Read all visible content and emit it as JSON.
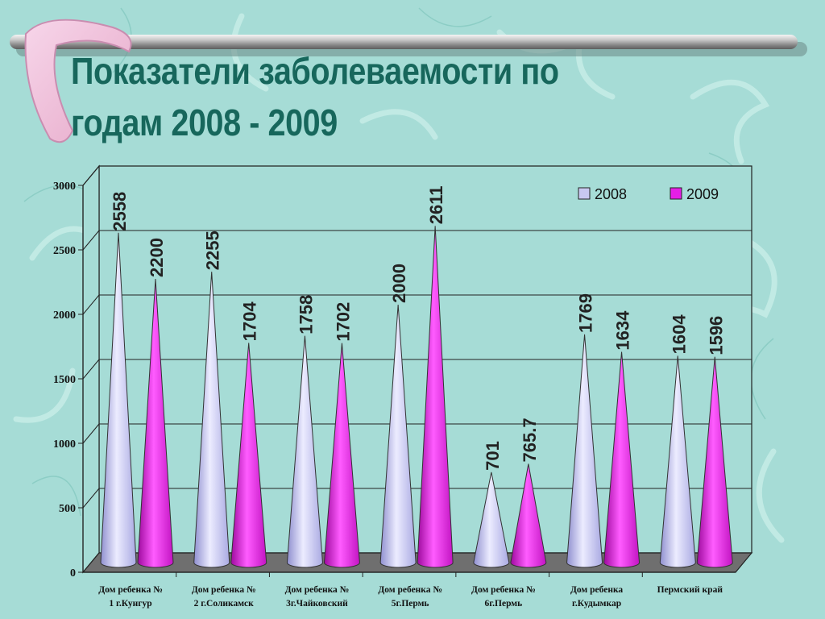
{
  "title": "Показатели заболеваемости по годам 2008 - 2009",
  "chart_data": {
    "type": "bar",
    "shape": "cone",
    "categories": [
      [
        "Дом ребенка №",
        "1 г.Кунгур"
      ],
      [
        "Дом ребенка №",
        "2 г.Соликамск"
      ],
      [
        "Дом ребенка №",
        "3г.Чайковский"
      ],
      [
        "Дом ребенка №",
        "5г.Пермь"
      ],
      [
        "Дом ребенка №",
        "6г.Пермь"
      ],
      [
        "Дом ребенка",
        "г.Кудымкар"
      ],
      [
        "Пермский край"
      ]
    ],
    "series": [
      {
        "name": "2008",
        "values": [
          2558,
          2255,
          1758,
          2000,
          701,
          1769,
          1604
        ],
        "labels": [
          "2558",
          "2255",
          "1758",
          "2000",
          "701",
          "1769",
          "1604"
        ],
        "color": "#c8c8f0"
      },
      {
        "name": "2009",
        "values": [
          2200,
          1704,
          1702,
          2611,
          765.7,
          1634,
          1596
        ],
        "labels": [
          "2200",
          "1704",
          "1702",
          "2611",
          "765.7",
          "1634",
          "1596"
        ],
        "color": "#e61ee6"
      }
    ],
    "yticks": [
      "0",
      "500",
      "1000",
      "1500",
      "2000",
      "2500",
      "3000"
    ],
    "ylim": [
      0,
      3000
    ],
    "grid": true,
    "legend": "top-right"
  }
}
